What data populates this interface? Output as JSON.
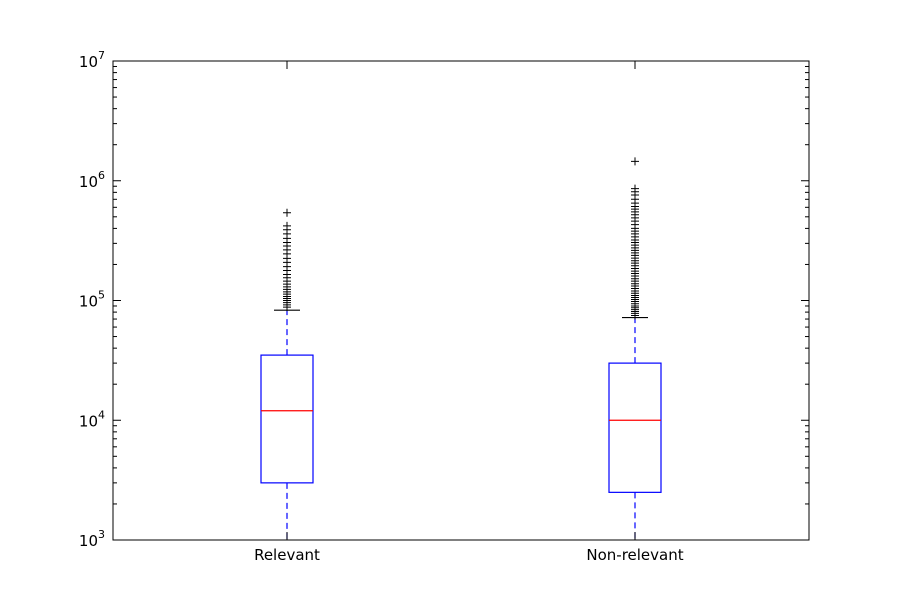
{
  "chart_data": {
    "type": "box",
    "title": "",
    "xlabel": "",
    "ylabel": "",
    "yscale": "log",
    "ylim": [
      1000,
      10000000
    ],
    "y_ticks": [
      {
        "value": 1000,
        "base": "10",
        "exp": "3"
      },
      {
        "value": 10000,
        "base": "10",
        "exp": "4"
      },
      {
        "value": 100000,
        "base": "10",
        "exp": "5"
      },
      {
        "value": 1000000,
        "base": "10",
        "exp": "6"
      },
      {
        "value": 10000000,
        "base": "10",
        "exp": "7"
      }
    ],
    "categories": [
      "Relevant",
      "Non-relevant"
    ],
    "boxes": [
      {
        "q1": 3000,
        "median": 12000,
        "q3": 35000,
        "whisker_low": 1000,
        "whisker_high": 83000,
        "outliers": [
          88000,
          92000,
          96000,
          100000,
          104000,
          108000,
          113000,
          118000,
          124000,
          130000,
          137000,
          145000,
          155000,
          165000,
          178000,
          192000,
          208000,
          225000,
          245000,
          265000,
          285000,
          305000,
          330000,
          360000,
          390000,
          420000,
          540000
        ]
      },
      {
        "q1": 2500,
        "median": 10000,
        "q3": 30000,
        "whisker_low": 1000,
        "whisker_high": 72000,
        "outliers": [
          75000,
          78000,
          81000,
          84000,
          87000,
          90000,
          94000,
          98000,
          102000,
          106000,
          110000,
          115000,
          120000,
          126000,
          132000,
          138000,
          145000,
          152000,
          160000,
          168000,
          176000,
          185000,
          195000,
          205000,
          215000,
          226000,
          238000,
          250000,
          262000,
          275000,
          290000,
          305000,
          320000,
          340000,
          360000,
          380000,
          400000,
          430000,
          460000,
          490000,
          520000,
          550000,
          580000,
          610000,
          650000,
          700000,
          760000,
          810000,
          860000,
          1450000
        ]
      }
    ],
    "colors": {
      "box": "#0000ff",
      "median": "#ff0000",
      "whisker": "#0000ff",
      "cap": "#000000",
      "flier": "#000000",
      "axis": "#000000"
    },
    "grid": false,
    "legend": "none"
  }
}
